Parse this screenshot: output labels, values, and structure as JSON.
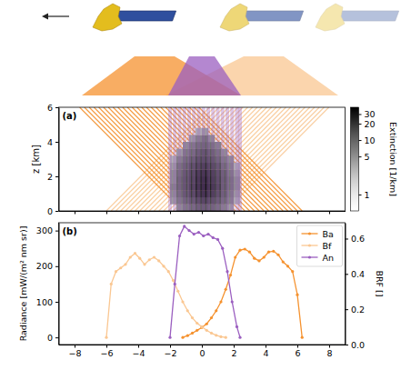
{
  "chart_data": [
    {
      "type": "heatmap",
      "annotation": "(a)",
      "ylabel": "z [km]",
      "xlim": [
        -9,
        9
      ],
      "xticks": [
        -8,
        -6,
        -4,
        -2,
        0,
        2,
        4,
        6,
        8
      ],
      "ylim": [
        0,
        6
      ],
      "yticks": [
        0,
        2,
        4,
        6
      ],
      "tick_labels": "y",
      "cells": {
        "x": [
          -1.8,
          -1.4,
          -1.0,
          -0.6,
          -0.2,
          0.2,
          0.6,
          1.0,
          1.4,
          1.8,
          2.2
        ],
        "y": [
          0.2,
          0.6,
          1.0,
          1.4,
          1.8,
          2.2,
          2.6,
          3.0,
          3.4,
          3.8,
          4.2,
          4.6
        ],
        "values": [
          [
            null,
            5,
            7,
            9,
            11,
            12,
            10,
            8,
            6,
            4,
            null
          ],
          [
            4,
            7,
            10,
            13,
            16,
            18,
            15,
            12,
            9,
            6,
            3
          ],
          [
            5,
            9,
            13,
            17,
            22,
            26,
            21,
            15,
            11,
            7,
            4
          ],
          [
            6,
            10,
            14,
            19,
            25,
            30,
            24,
            17,
            12,
            8,
            5
          ],
          [
            5,
            10,
            14,
            18,
            24,
            28,
            22,
            16,
            12,
            8,
            5
          ],
          [
            5,
            9,
            13,
            17,
            22,
            25,
            20,
            15,
            11,
            7,
            4
          ],
          [
            4,
            8,
            11,
            15,
            18,
            20,
            17,
            13,
            9,
            6,
            3
          ],
          [
            3,
            6,
            9,
            12,
            15,
            16,
            14,
            10,
            7,
            5,
            null
          ],
          [
            null,
            4,
            7,
            9,
            12,
            14,
            11,
            8,
            5,
            null,
            null
          ],
          [
            null,
            null,
            5,
            7,
            9,
            10,
            8,
            6,
            null,
            null,
            null
          ],
          [
            null,
            null,
            null,
            4,
            6,
            8,
            5,
            null,
            null,
            null,
            null
          ],
          [
            null,
            null,
            null,
            null,
            3,
            4,
            null,
            null,
            null,
            null,
            null
          ]
        ]
      },
      "colorbar": {
        "label": "Extinction [1/km]",
        "range": [
          0.5,
          40
        ],
        "ticks": [
          1,
          5,
          10,
          20,
          30
        ],
        "log": true
      }
    },
    {
      "type": "line",
      "annotation": "(b)",
      "ylabel": "Radiance [mW/(m² nm sr)]",
      "y2label": "BRF []",
      "xlim": [
        -9,
        9
      ],
      "xticks": [
        {
          "value": -8,
          "label": "−8"
        },
        {
          "value": -6,
          "label": "−6"
        },
        {
          "value": -4,
          "label": "−4"
        },
        {
          "value": -2,
          "label": "−2"
        },
        0,
        2,
        4,
        6,
        8
      ],
      "ylim": [
        -20,
        322
      ],
      "yticks": [
        0,
        100,
        200,
        300
      ],
      "y2lim": [
        0,
        0.69
      ],
      "y2ticks": [
        {
          "value": 0,
          "label": "0.0"
        },
        0.2,
        0.4,
        0.6
      ],
      "legend": "upper right",
      "series": [
        {
          "name": "Ba",
          "color": "#f5922f",
          "marker": "o",
          "line_style": "solid",
          "x": [
            -1.2,
            -0.9,
            -0.6,
            -0.3,
            0.0,
            0.3,
            0.6,
            0.9,
            1.2,
            1.5,
            1.8,
            2.1,
            2.4,
            2.7,
            3.0,
            3.3,
            3.6,
            3.9,
            4.2,
            4.5,
            4.8,
            5.1,
            5.4,
            5.7,
            6.0,
            6.3
          ],
          "values": [
            0,
            5,
            12,
            20,
            28,
            38,
            55,
            75,
            100,
            135,
            175,
            225,
            245,
            248,
            240,
            222,
            215,
            225,
            240,
            242,
            232,
            212,
            200,
            185,
            120,
            0
          ]
        },
        {
          "name": "Bf",
          "color": "#fac792",
          "marker": "o",
          "line_style": "solid",
          "x": [
            -6.0,
            -5.7,
            -5.4,
            -5.1,
            -4.8,
            -4.5,
            -4.2,
            -3.9,
            -3.6,
            -3.3,
            -3.0,
            -2.7,
            -2.4,
            -2.1,
            -1.8,
            -1.5,
            -1.2,
            -0.9,
            -0.6,
            -0.3,
            0.0,
            0.3,
            0.6,
            0.9,
            1.2,
            1.5
          ],
          "values": [
            0,
            150,
            185,
            195,
            205,
            225,
            236,
            222,
            205,
            218,
            225,
            215,
            200,
            185,
            160,
            130,
            100,
            75,
            55,
            40,
            30,
            20,
            12,
            6,
            2,
            0
          ]
        },
        {
          "name": "An",
          "color": "#9b5fc0",
          "marker": "o",
          "line_style": "solid",
          "x": [
            -2.0,
            -1.7,
            -1.4,
            -1.1,
            -0.8,
            -0.5,
            -0.2,
            0.1,
            0.4,
            0.7,
            1.0,
            1.3,
            1.6,
            1.9,
            2.2,
            2.4
          ],
          "values": [
            0,
            150,
            285,
            312,
            300,
            290,
            295,
            285,
            290,
            280,
            275,
            250,
            185,
            100,
            30,
            0
          ]
        }
      ]
    }
  ]
}
